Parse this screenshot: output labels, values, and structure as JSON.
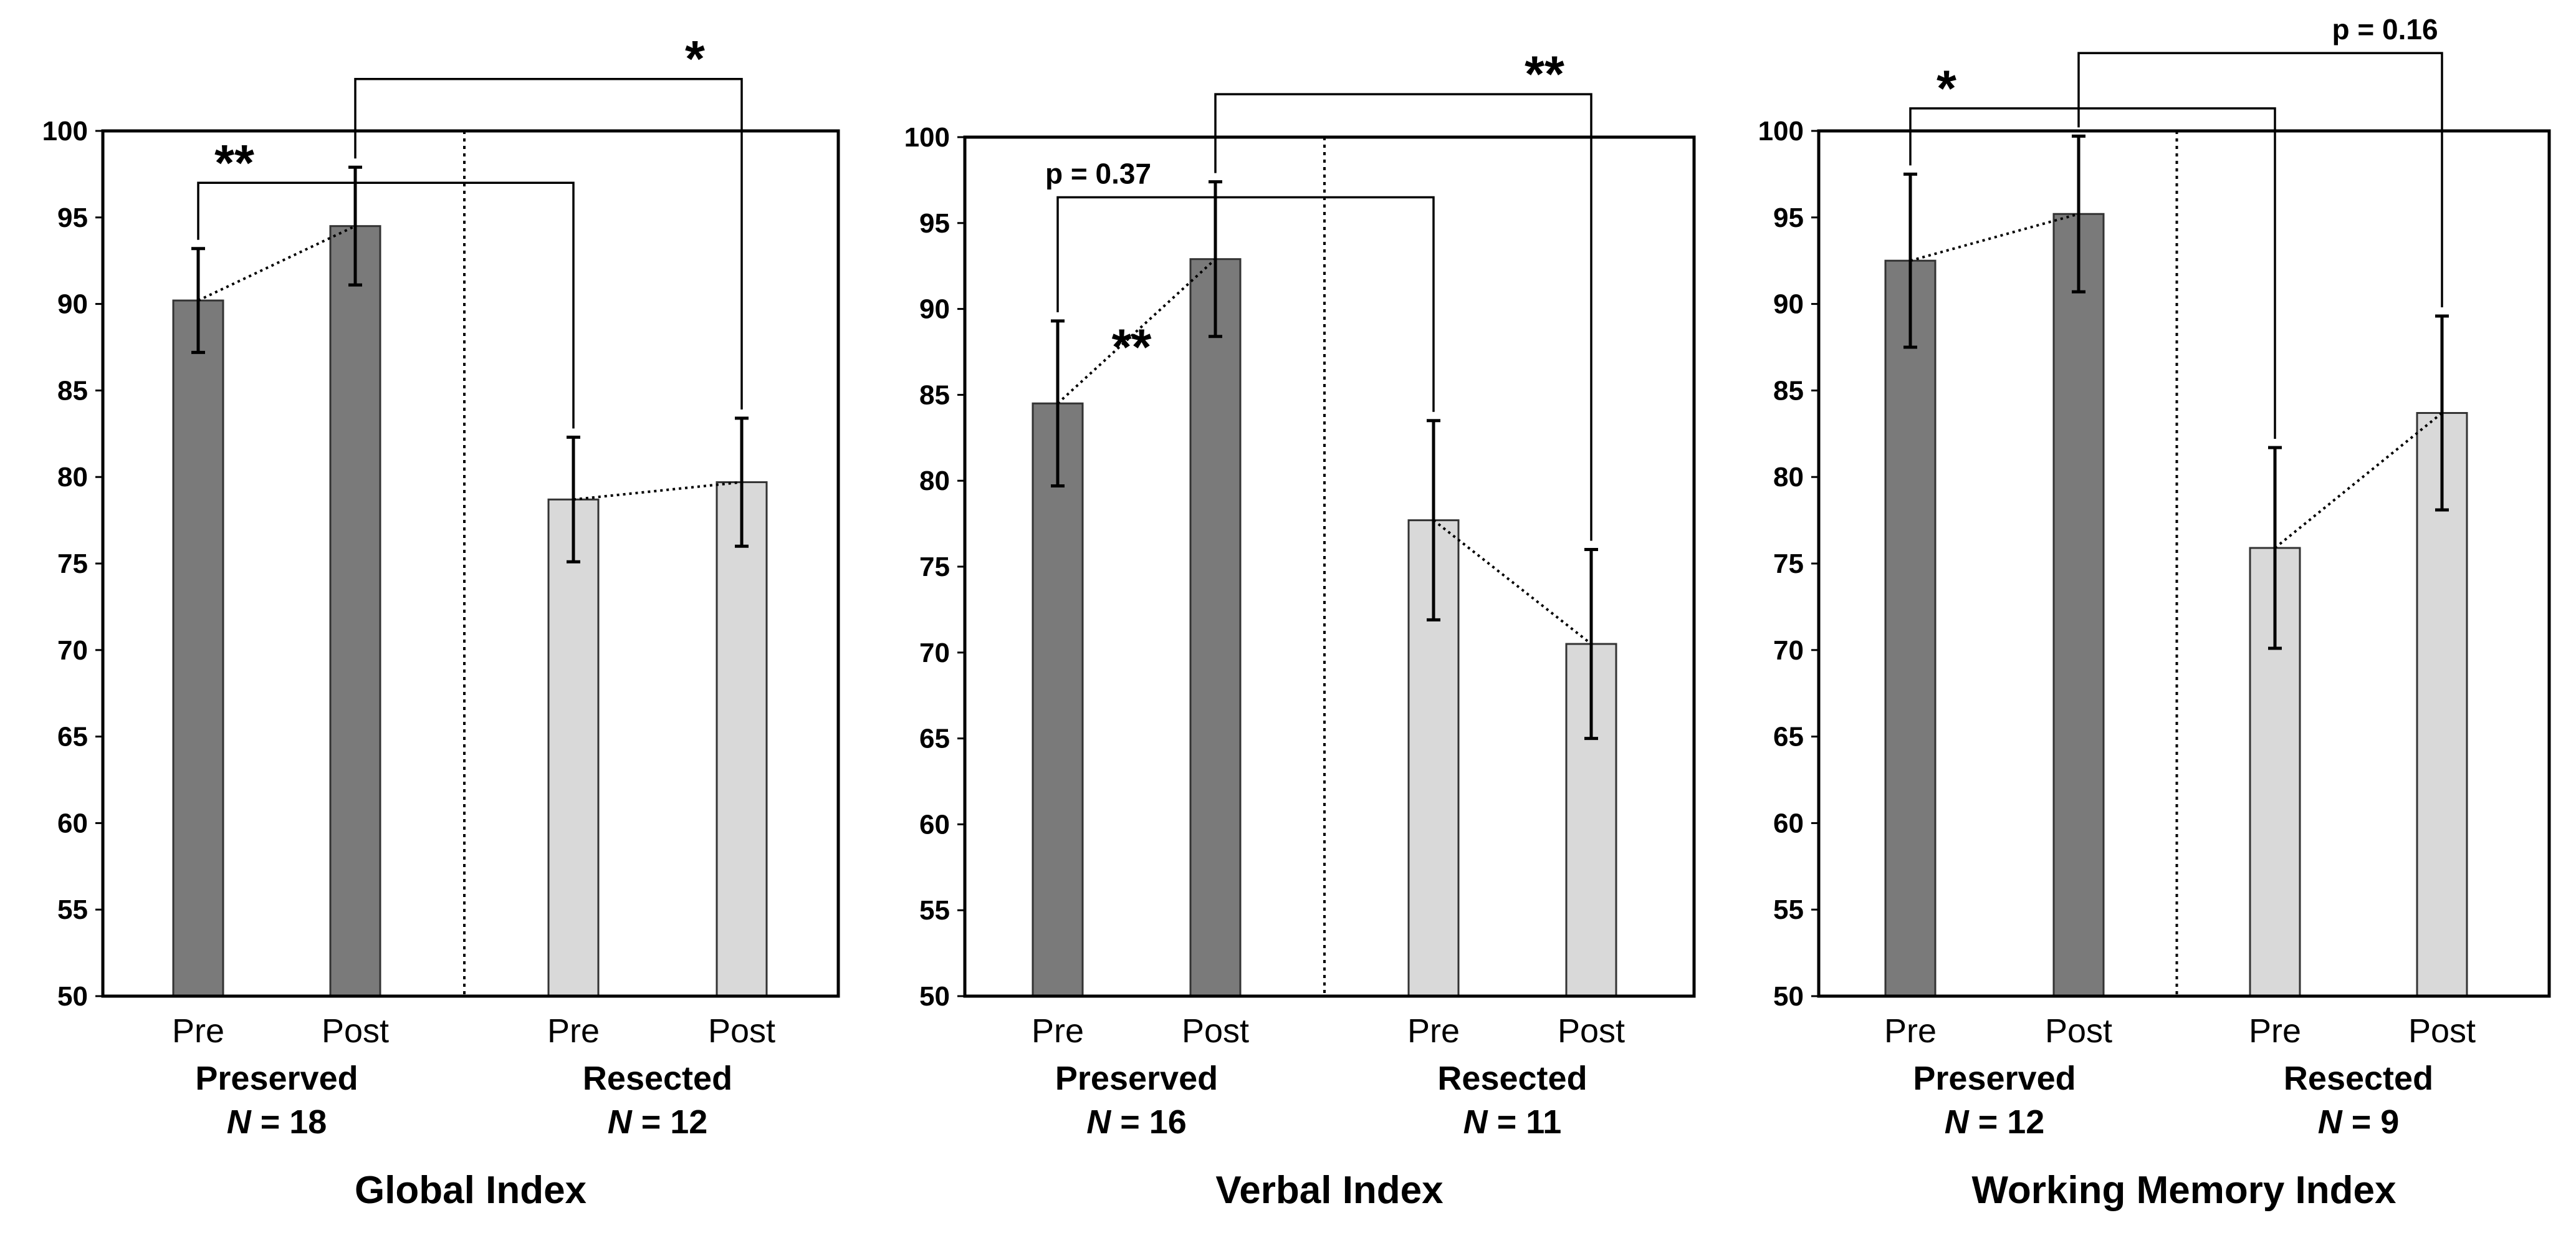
{
  "chart_data": [
    {
      "type": "bar",
      "title": "Global Index",
      "ylim": [
        50,
        100
      ],
      "yticks": [
        50,
        55,
        60,
        65,
        70,
        75,
        80,
        85,
        90,
        95,
        100
      ],
      "groups": [
        {
          "name": "Preserved",
          "n_prefix": "N",
          "n_value": "= 18",
          "color": "#7a7a7a",
          "bars": [
            {
              "label": "Pre",
              "value": 90.2,
              "err": 3.0
            },
            {
              "label": "Post",
              "value": 94.5,
              "err": 3.4
            }
          ]
        },
        {
          "name": "Resected",
          "n_prefix": "N",
          "n_value": "= 12",
          "color": "#d9d9d9",
          "bars": [
            {
              "label": "Pre",
              "value": 78.7,
              "err": 3.6
            },
            {
              "label": "Post",
              "value": 79.7,
              "err": 3.7
            }
          ]
        }
      ],
      "comparisons": [
        {
          "from": [
            0,
            1
          ],
          "to": [
            1,
            1
          ],
          "level": 103,
          "label": "*",
          "label_type": "stars"
        },
        {
          "from": [
            0,
            0
          ],
          "to": [
            1,
            0
          ],
          "level": 97,
          "label": "**",
          "label_type": "stars"
        }
      ],
      "within_labels": []
    },
    {
      "type": "bar",
      "title": "Verbal Index",
      "ylim": [
        50,
        100
      ],
      "yticks": [
        50,
        55,
        60,
        65,
        70,
        75,
        80,
        85,
        90,
        95,
        100
      ],
      "groups": [
        {
          "name": "Preserved",
          "n_prefix": "N",
          "n_value": "= 16",
          "color": "#7a7a7a",
          "bars": [
            {
              "label": "Pre",
              "value": 84.5,
              "err": 4.8
            },
            {
              "label": "Post",
              "value": 92.9,
              "err": 4.5
            }
          ]
        },
        {
          "name": "Resected",
          "n_prefix": "N",
          "n_value": "= 11",
          "color": "#d9d9d9",
          "bars": [
            {
              "label": "Pre",
              "value": 77.7,
              "err": 5.8
            },
            {
              "label": "Post",
              "value": 70.5,
              "err": 5.5
            }
          ]
        }
      ],
      "comparisons": [
        {
          "from": [
            0,
            1
          ],
          "to": [
            1,
            1
          ],
          "level": 102.5,
          "label": "**",
          "label_type": "stars"
        },
        {
          "from": [
            0,
            0
          ],
          "to": [
            1,
            0
          ],
          "level": 96.5,
          "label": "p = 0.37",
          "label_type": "p"
        }
      ],
      "within_labels": [
        {
          "label": "**",
          "value": 88.5
        }
      ]
    },
    {
      "type": "bar",
      "title": "Working Memory Index",
      "ylim": [
        50,
        100
      ],
      "yticks": [
        50,
        55,
        60,
        65,
        70,
        75,
        80,
        85,
        90,
        95,
        100
      ],
      "groups": [
        {
          "name": "Preserved",
          "n_prefix": "N",
          "n_value": "= 12",
          "color": "#7a7a7a",
          "bars": [
            {
              "label": "Pre",
              "value": 92.5,
              "err": 5.0
            },
            {
              "label": "Post",
              "value": 95.2,
              "err": 4.5
            }
          ]
        },
        {
          "name": "Resected",
          "n_prefix": "N",
          "n_value": "= 9",
          "color": "#d9d9d9",
          "bars": [
            {
              "label": "Pre",
              "value": 75.9,
              "err": 5.8
            },
            {
              "label": "Post",
              "value": 83.7,
              "err": 5.6
            }
          ]
        }
      ],
      "comparisons": [
        {
          "from": [
            0,
            1
          ],
          "to": [
            1,
            1
          ],
          "level": 104.5,
          "label": "p = 0.16",
          "label_type": "p"
        },
        {
          "from": [
            0,
            0
          ],
          "to": [
            1,
            0
          ],
          "level": 101.3,
          "label": "*",
          "label_type": "stars"
        }
      ],
      "within_labels": []
    }
  ]
}
